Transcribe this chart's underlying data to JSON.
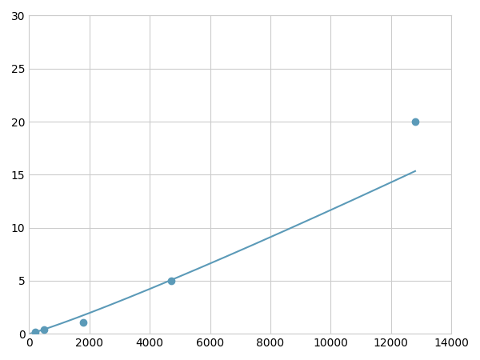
{
  "x": [
    200,
    500,
    1800,
    4700,
    12800
  ],
  "y": [
    0.2,
    0.4,
    1.1,
    5.0,
    20.0
  ],
  "line_color": "#5b9ab8",
  "marker_color": "#5b9ab8",
  "marker_size": 6,
  "line_width": 1.5,
  "xlim": [
    0,
    14000
  ],
  "ylim": [
    0,
    30
  ],
  "xticks": [
    0,
    2000,
    4000,
    6000,
    8000,
    10000,
    12000,
    14000
  ],
  "yticks": [
    0,
    5,
    10,
    15,
    20,
    25,
    30
  ],
  "grid_color": "#cccccc",
  "background_color": "#ffffff",
  "tick_fontsize": 10
}
